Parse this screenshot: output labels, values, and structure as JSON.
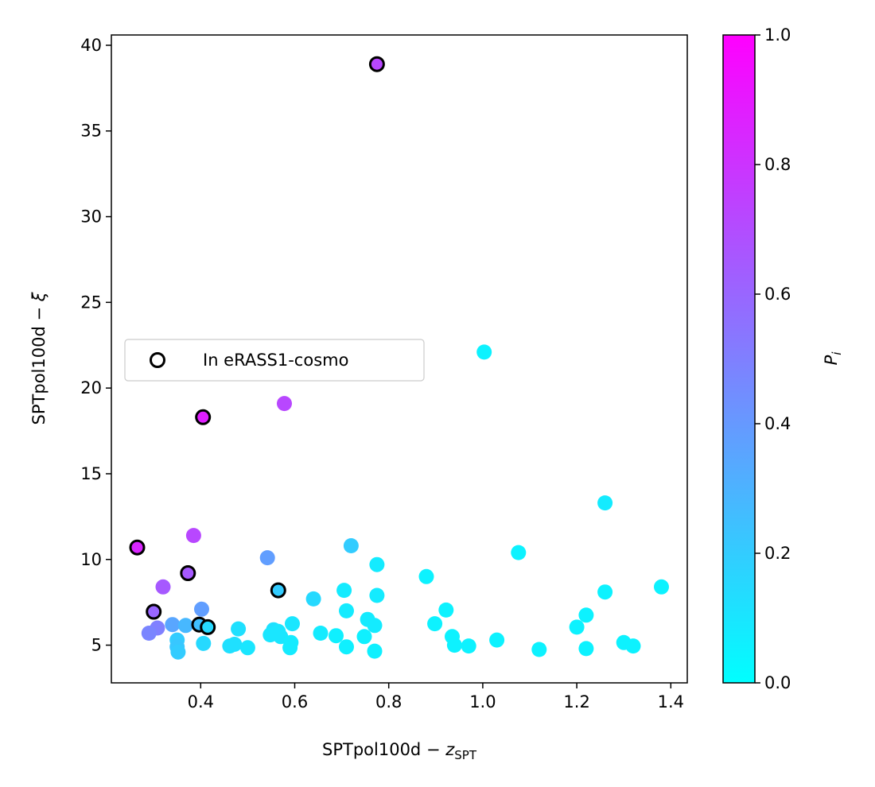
{
  "chart_data": {
    "type": "scatter",
    "title": "",
    "xlabel": "SPTpol100d − ",
    "xlabel_math": "z",
    "xlabel_sub": "SPT",
    "ylabel": "SPTpol100d − ",
    "ylabel_math": "ξ",
    "xlim": [
      0.21,
      1.435
    ],
    "ylim": [
      2.8,
      40.6
    ],
    "xticks": [
      0.4,
      0.6,
      0.8,
      1.0,
      1.2,
      1.4
    ],
    "xtick_labels": [
      "0.4",
      "0.6",
      "0.8",
      "1.0",
      "1.2",
      "1.4"
    ],
    "yticks": [
      5,
      10,
      15,
      20,
      25,
      30,
      35,
      40
    ],
    "ytick_labels": [
      "5",
      "10",
      "15",
      "20",
      "25",
      "30",
      "35",
      "40"
    ],
    "grid": false,
    "colorbar": {
      "label": "P",
      "label_sub": "i",
      "range": [
        0.0,
        1.0
      ],
      "ticks": [
        0.0,
        0.2,
        0.4,
        0.6,
        0.8,
        1.0
      ],
      "tick_labels": [
        "0.0",
        "0.2",
        "0.4",
        "0.6",
        "0.8",
        "1.0"
      ],
      "colormap": "cool",
      "color_low": "#00ffff",
      "color_high": "#ff00ff"
    },
    "legend": {
      "placement": "center-left",
      "entries": [
        {
          "label": "In eRASS1-cosmo",
          "marker": "hollow-circle",
          "edge_color": "#000000"
        }
      ]
    },
    "points": [
      {
        "x": 0.775,
        "y": 38.9,
        "p": 0.72,
        "erass": true
      },
      {
        "x": 0.405,
        "y": 18.3,
        "p": 0.88,
        "erass": true
      },
      {
        "x": 0.578,
        "y": 19.1,
        "p": 0.72,
        "erass": false
      },
      {
        "x": 1.003,
        "y": 22.1,
        "p": 0.05,
        "erass": false
      },
      {
        "x": 1.26,
        "y": 13.3,
        "p": 0.08,
        "erass": false
      },
      {
        "x": 0.265,
        "y": 10.7,
        "p": 0.85,
        "erass": true
      },
      {
        "x": 0.385,
        "y": 11.4,
        "p": 0.72,
        "erass": false
      },
      {
        "x": 0.72,
        "y": 10.8,
        "p": 0.2,
        "erass": false
      },
      {
        "x": 0.542,
        "y": 10.1,
        "p": 0.38,
        "erass": false
      },
      {
        "x": 1.076,
        "y": 10.4,
        "p": 0.05,
        "erass": false
      },
      {
        "x": 0.373,
        "y": 9.2,
        "p": 0.65,
        "erass": true
      },
      {
        "x": 0.775,
        "y": 9.7,
        "p": 0.08,
        "erass": false
      },
      {
        "x": 0.88,
        "y": 9.0,
        "p": 0.05,
        "erass": false
      },
      {
        "x": 0.32,
        "y": 8.4,
        "p": 0.65,
        "erass": false
      },
      {
        "x": 0.565,
        "y": 8.2,
        "p": 0.2,
        "erass": true
      },
      {
        "x": 0.705,
        "y": 8.2,
        "p": 0.08,
        "erass": false
      },
      {
        "x": 0.775,
        "y": 7.9,
        "p": 0.08,
        "erass": false
      },
      {
        "x": 1.26,
        "y": 8.1,
        "p": 0.05,
        "erass": false
      },
      {
        "x": 1.38,
        "y": 8.4,
        "p": 0.05,
        "erass": false
      },
      {
        "x": 0.64,
        "y": 7.7,
        "p": 0.15,
        "erass": false
      },
      {
        "x": 0.3,
        "y": 6.95,
        "p": 0.6,
        "erass": true
      },
      {
        "x": 0.402,
        "y": 7.1,
        "p": 0.38,
        "erass": false
      },
      {
        "x": 0.71,
        "y": 7.0,
        "p": 0.08,
        "erass": false
      },
      {
        "x": 0.922,
        "y": 7.05,
        "p": 0.05,
        "erass": false
      },
      {
        "x": 1.22,
        "y": 6.75,
        "p": 0.05,
        "erass": false
      },
      {
        "x": 0.755,
        "y": 6.5,
        "p": 0.08,
        "erass": false
      },
      {
        "x": 0.595,
        "y": 6.25,
        "p": 0.1,
        "erass": false
      },
      {
        "x": 0.898,
        "y": 6.25,
        "p": 0.05,
        "erass": false
      },
      {
        "x": 0.34,
        "y": 6.2,
        "p": 0.35,
        "erass": false
      },
      {
        "x": 0.368,
        "y": 6.15,
        "p": 0.28,
        "erass": false
      },
      {
        "x": 0.397,
        "y": 6.2,
        "p": 0.25,
        "erass": true
      },
      {
        "x": 0.415,
        "y": 6.05,
        "p": 0.15,
        "erass": true
      },
      {
        "x": 0.308,
        "y": 6.0,
        "p": 0.5,
        "erass": false
      },
      {
        "x": 0.29,
        "y": 5.7,
        "p": 0.48,
        "erass": false
      },
      {
        "x": 0.48,
        "y": 5.95,
        "p": 0.12,
        "erass": false
      },
      {
        "x": 0.555,
        "y": 5.9,
        "p": 0.12,
        "erass": false
      },
      {
        "x": 0.77,
        "y": 6.15,
        "p": 0.08,
        "erass": false
      },
      {
        "x": 1.2,
        "y": 6.05,
        "p": 0.05,
        "erass": false
      },
      {
        "x": 0.548,
        "y": 5.6,
        "p": 0.1,
        "erass": false
      },
      {
        "x": 0.565,
        "y": 5.8,
        "p": 0.1,
        "erass": false
      },
      {
        "x": 0.57,
        "y": 5.5,
        "p": 0.1,
        "erass": false
      },
      {
        "x": 0.655,
        "y": 5.7,
        "p": 0.08,
        "erass": false
      },
      {
        "x": 0.688,
        "y": 5.55,
        "p": 0.06,
        "erass": false
      },
      {
        "x": 0.748,
        "y": 5.5,
        "p": 0.06,
        "erass": false
      },
      {
        "x": 0.935,
        "y": 5.5,
        "p": 0.05,
        "erass": false
      },
      {
        "x": 1.03,
        "y": 5.3,
        "p": 0.05,
        "erass": false
      },
      {
        "x": 0.35,
        "y": 5.3,
        "p": 0.2,
        "erass": false
      },
      {
        "x": 0.35,
        "y": 4.9,
        "p": 0.22,
        "erass": false
      },
      {
        "x": 0.352,
        "y": 4.6,
        "p": 0.2,
        "erass": false
      },
      {
        "x": 0.406,
        "y": 5.1,
        "p": 0.15,
        "erass": false
      },
      {
        "x": 0.462,
        "y": 4.95,
        "p": 0.12,
        "erass": false
      },
      {
        "x": 0.472,
        "y": 5.05,
        "p": 0.12,
        "erass": false
      },
      {
        "x": 0.5,
        "y": 4.85,
        "p": 0.1,
        "erass": false
      },
      {
        "x": 0.59,
        "y": 4.85,
        "p": 0.08,
        "erass": false
      },
      {
        "x": 0.592,
        "y": 5.15,
        "p": 0.08,
        "erass": false
      },
      {
        "x": 0.71,
        "y": 4.9,
        "p": 0.06,
        "erass": false
      },
      {
        "x": 0.77,
        "y": 4.65,
        "p": 0.06,
        "erass": false
      },
      {
        "x": 0.94,
        "y": 5.0,
        "p": 0.05,
        "erass": false
      },
      {
        "x": 0.97,
        "y": 4.95,
        "p": 0.05,
        "erass": false
      },
      {
        "x": 1.12,
        "y": 4.75,
        "p": 0.05,
        "erass": false
      },
      {
        "x": 1.22,
        "y": 4.8,
        "p": 0.05,
        "erass": false
      },
      {
        "x": 1.3,
        "y": 5.15,
        "p": 0.05,
        "erass": false
      },
      {
        "x": 1.32,
        "y": 4.95,
        "p": 0.05,
        "erass": false
      }
    ]
  }
}
